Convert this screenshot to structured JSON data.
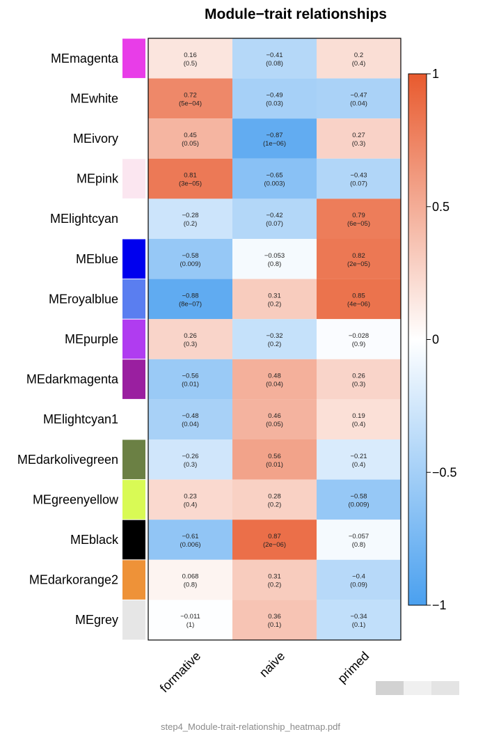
{
  "chart_data": {
    "type": "heatmap",
    "title": "Module−trait relationships",
    "columns": [
      "formative",
      "naive",
      "primed"
    ],
    "rows": [
      {
        "label": "MEmagenta",
        "module_color": "#e83de8",
        "values": [
          0.16,
          -0.41,
          0.2
        ],
        "labels": [
          "0.16",
          "−0.41",
          "0.2"
        ],
        "pvalues": [
          "(0.5)",
          "(0.08)",
          "(0.4)"
        ]
      },
      {
        "label": "MEwhite",
        "module_color": "#ffffff",
        "values": [
          0.72,
          -0.49,
          -0.47
        ],
        "labels": [
          "0.72",
          "−0.49",
          "−0.47"
        ],
        "pvalues": [
          "(5e−04)",
          "(0.03)",
          "(0.04)"
        ]
      },
      {
        "label": "MEivory",
        "module_color": "#ffffff",
        "values": [
          0.45,
          -0.87,
          0.27
        ],
        "labels": [
          "0.45",
          "−0.87",
          "0.27"
        ],
        "pvalues": [
          "(0.05)",
          "(1e−06)",
          "(0.3)"
        ]
      },
      {
        "label": "MEpink",
        "module_color": "#fbe6f0",
        "values": [
          0.81,
          -0.65,
          -0.43
        ],
        "labels": [
          "0.81",
          "−0.65",
          "−0.43"
        ],
        "pvalues": [
          "(3e−05)",
          "(0.003)",
          "(0.07)"
        ]
      },
      {
        "label": "MElightcyan",
        "module_color": "#ffffff",
        "values": [
          -0.28,
          -0.42,
          0.79
        ],
        "labels": [
          "−0.28",
          "−0.42",
          "0.79"
        ],
        "pvalues": [
          "(0.2)",
          "(0.07)",
          "(6e−05)"
        ]
      },
      {
        "label": "MEblue",
        "module_color": "#0000ee",
        "values": [
          -0.58,
          -0.053,
          0.82
        ],
        "labels": [
          "−0.58",
          "−0.053",
          "0.82"
        ],
        "pvalues": [
          "(0.009)",
          "(0.8)",
          "(2e−05)"
        ]
      },
      {
        "label": "MEroyalblue",
        "module_color": "#5a7ef0",
        "values": [
          -0.88,
          0.31,
          0.85
        ],
        "labels": [
          "−0.88",
          "0.31",
          "0.85"
        ],
        "pvalues": [
          "(8e−07)",
          "(0.2)",
          "(4e−06)"
        ]
      },
      {
        "label": "MEpurple",
        "module_color": "#b03cf0",
        "values": [
          0.26,
          -0.32,
          -0.028
        ],
        "labels": [
          "0.26",
          "−0.32",
          "−0.028"
        ],
        "pvalues": [
          "(0.3)",
          "(0.2)",
          "(0.9)"
        ]
      },
      {
        "label": "MEdarkmagenta",
        "module_color": "#9a1fa0",
        "values": [
          -0.56,
          0.48,
          0.26
        ],
        "labels": [
          "−0.56",
          "0.48",
          "0.26"
        ],
        "pvalues": [
          "(0.01)",
          "(0.04)",
          "(0.3)"
        ]
      },
      {
        "label": "MElightcyan1",
        "module_color": "#ffffff",
        "values": [
          -0.48,
          0.46,
          0.19
        ],
        "labels": [
          "−0.48",
          "0.46",
          "0.19"
        ],
        "pvalues": [
          "(0.04)",
          "(0.05)",
          "(0.4)"
        ]
      },
      {
        "label": "MEdarkolivegreen",
        "module_color": "#6b8044",
        "values": [
          -0.26,
          0.56,
          -0.21
        ],
        "labels": [
          "−0.26",
          "0.56",
          "−0.21"
        ],
        "pvalues": [
          "(0.3)",
          "(0.01)",
          "(0.4)"
        ]
      },
      {
        "label": "MEgreenyellow",
        "module_color": "#d9fa55",
        "values": [
          0.23,
          0.28,
          -0.58
        ],
        "labels": [
          "0.23",
          "0.28",
          "−0.58"
        ],
        "pvalues": [
          "(0.4)",
          "(0.2)",
          "(0.009)"
        ]
      },
      {
        "label": "MEblack",
        "module_color": "#000000",
        "values": [
          -0.61,
          0.87,
          -0.057
        ],
        "labels": [
          "−0.61",
          "0.87",
          "−0.057"
        ],
        "pvalues": [
          "(0.006)",
          "(2e−06)",
          "(0.8)"
        ]
      },
      {
        "label": "MEdarkorange2",
        "module_color": "#ee9238",
        "values": [
          0.068,
          0.31,
          -0.4
        ],
        "labels": [
          "0.068",
          "0.31",
          "−0.4"
        ],
        "pvalues": [
          "(0.8)",
          "(0.2)",
          "(0.09)"
        ]
      },
      {
        "label": "MEgrey",
        "module_color": "#e6e6e6",
        "values": [
          -0.011,
          0.36,
          -0.34
        ],
        "labels": [
          "−0.011",
          "0.36",
          "−0.34"
        ],
        "pvalues": [
          "(1)",
          "(0.1)",
          "(0.1)"
        ]
      }
    ],
    "colorbar": {
      "range": [
        -1,
        1
      ],
      "ticks": [
        1,
        0.5,
        0,
        -0.5,
        -1
      ],
      "tick_labels": [
        "1",
        "0.5",
        "0",
        "−0.5",
        "−1"
      ],
      "low_color": "#4aa0ef",
      "mid_color": "#ffffff",
      "high_color": "#e85a2e"
    },
    "grid": false
  },
  "footer": {
    "filename": "step4_Module-trait-relationship_heatmap.pdf"
  },
  "watermark_colors": [
    "#d2d2d2",
    "#f0f0f0",
    "#e4e4e4"
  ]
}
